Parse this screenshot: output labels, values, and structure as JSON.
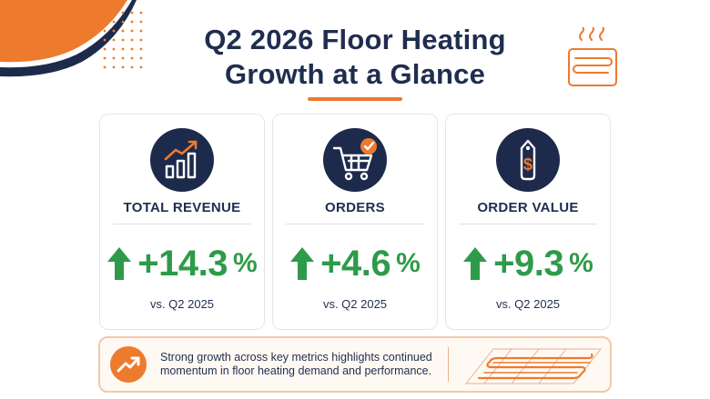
{
  "header": {
    "title_line1": "Q2 2026 Floor Heating",
    "title_line2": "Growth at a Glance"
  },
  "colors": {
    "navy": "#1d2a4b",
    "accent_orange": "#ee7a2d",
    "growth_green": "#2e9b4a"
  },
  "metrics": [
    {
      "label": "TOTAL REVENUE",
      "value": "+14.3",
      "unit": "%",
      "comparison": "vs. Q2 2025",
      "icon": "revenue-chart-icon"
    },
    {
      "label": "ORDERS",
      "value": "+4.6",
      "unit": "%",
      "comparison": "vs. Q2 2025",
      "icon": "shopping-cart-icon"
    },
    {
      "label": "ORDER VALUE",
      "value": "+9.3",
      "unit": "%",
      "comparison": "vs. Q2 2025",
      "icon": "price-tag-icon"
    }
  ],
  "summary": {
    "text": "Strong growth across key metrics highlights continued momentum in floor heating demand and performance.",
    "icon": "trend-up-icon",
    "illustration": "heated-floor-icon"
  }
}
